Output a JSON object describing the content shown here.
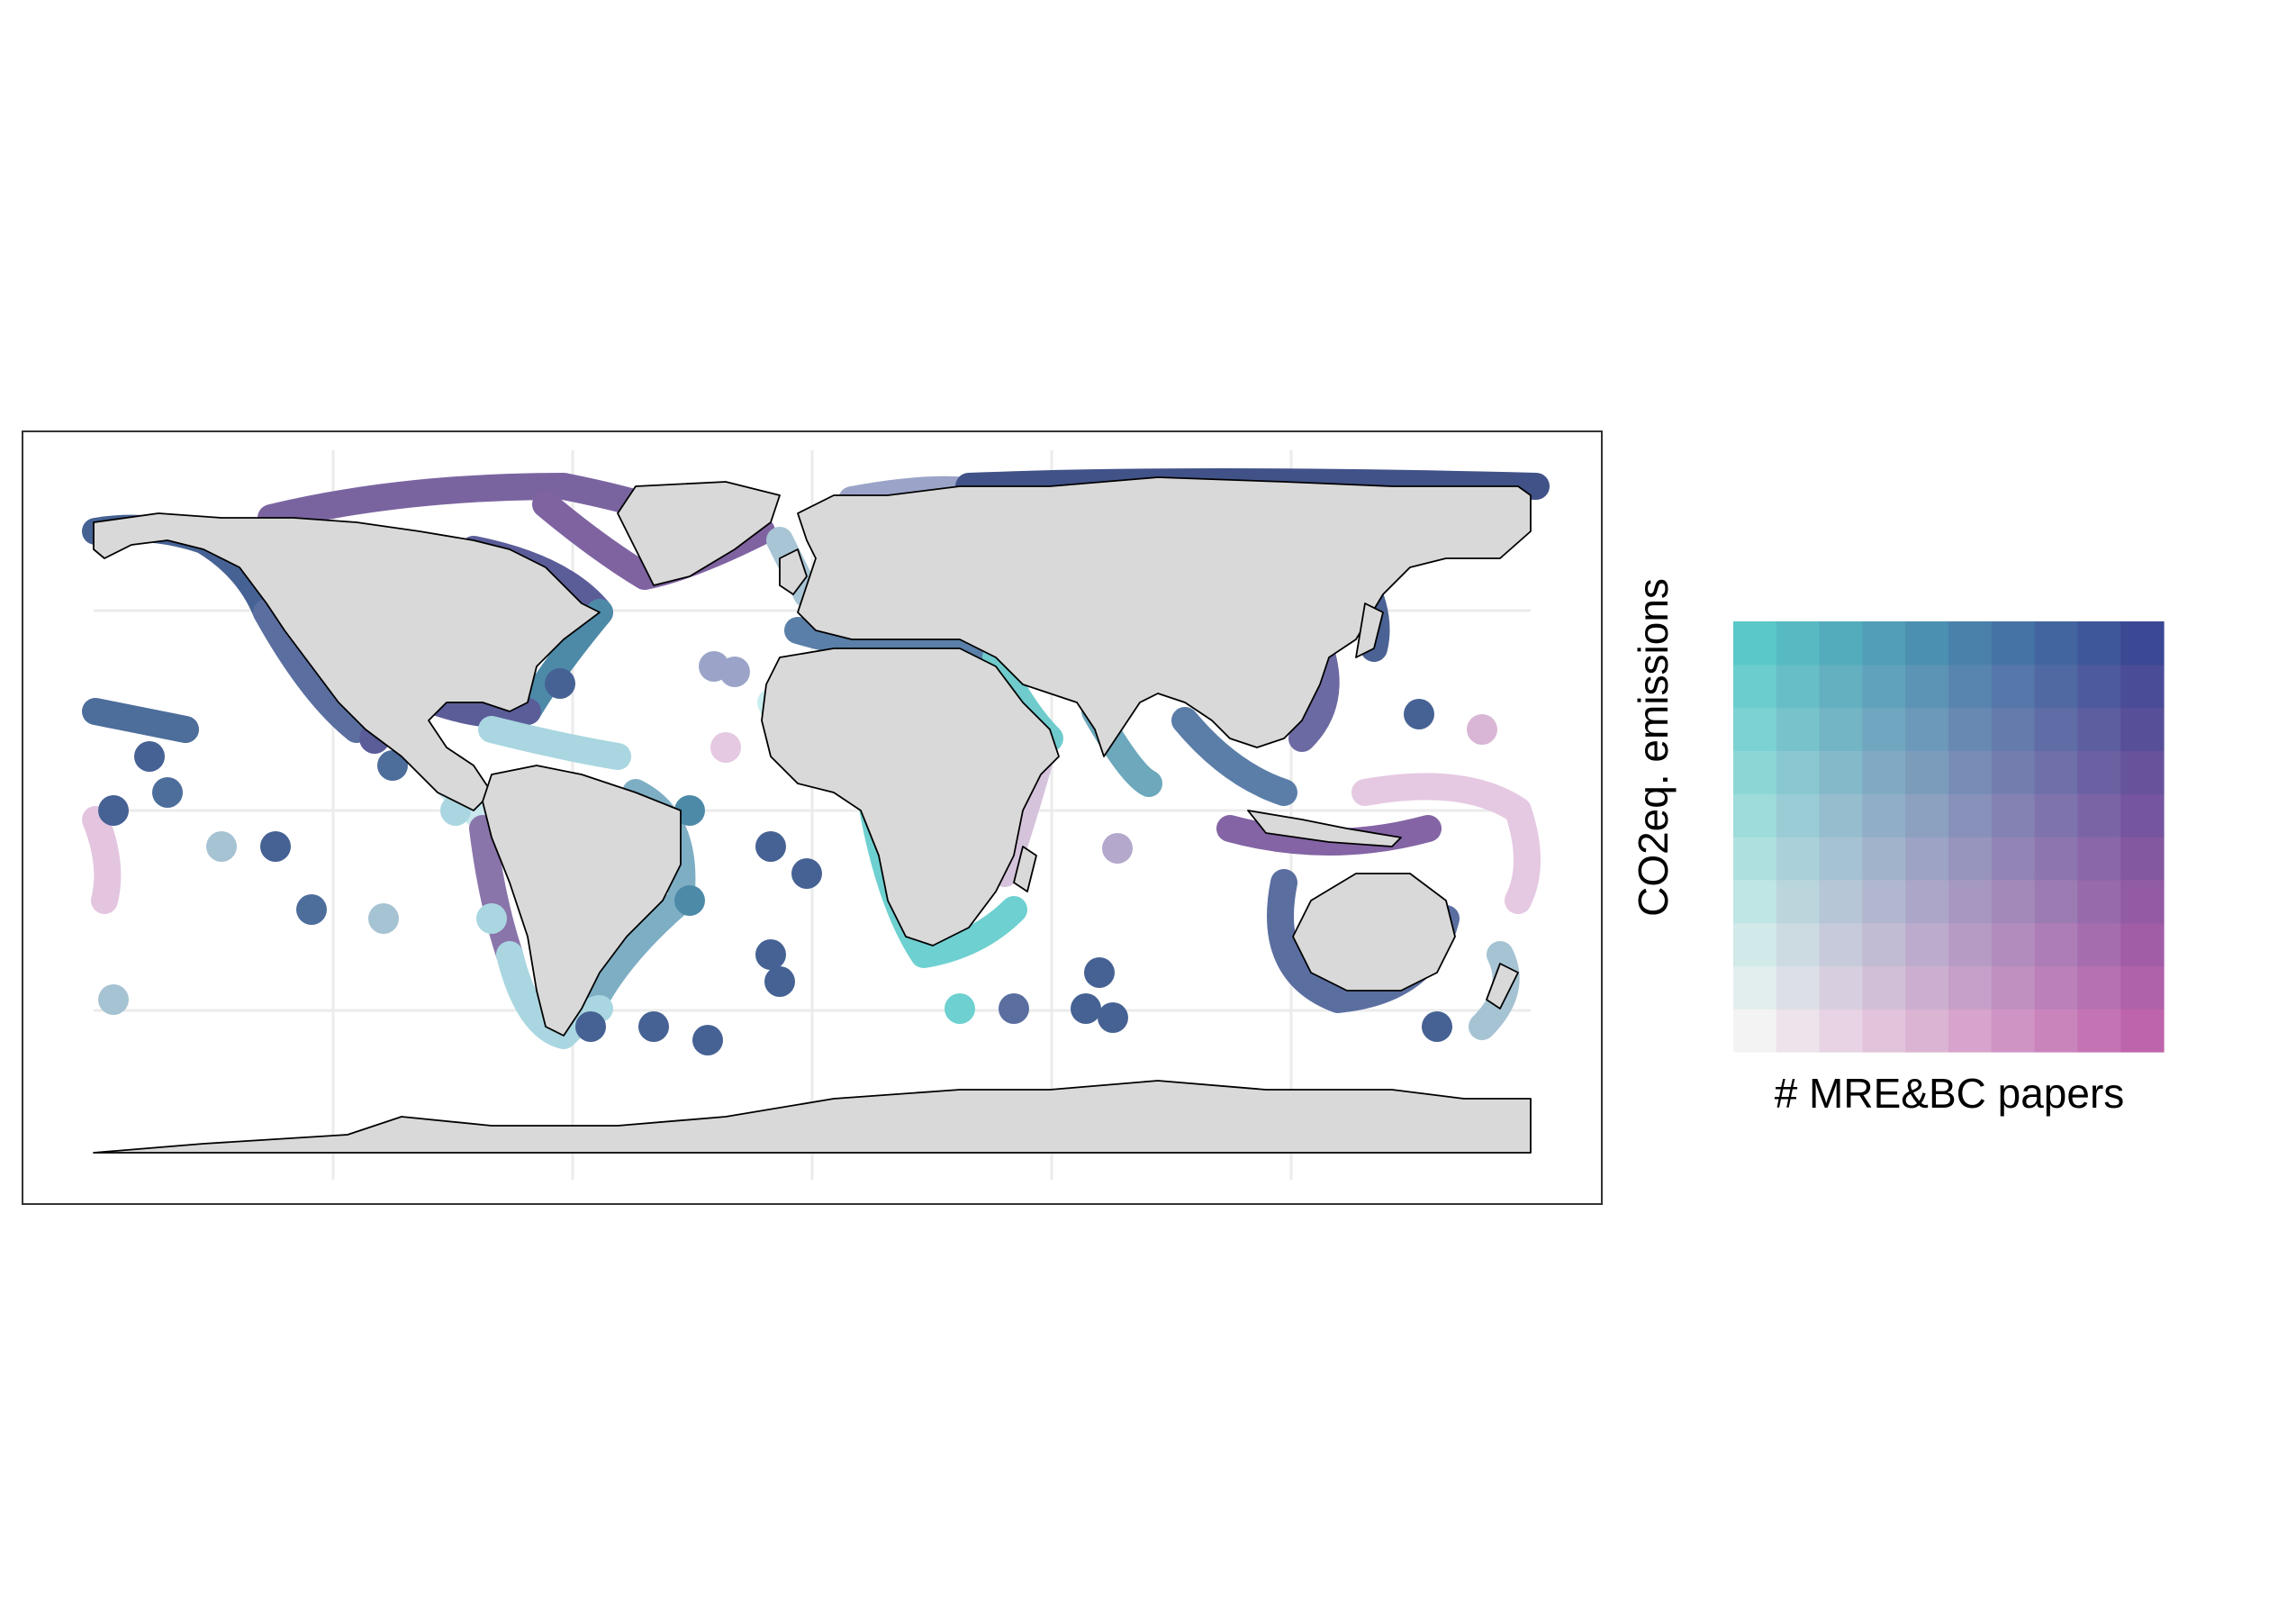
{
  "legend": {
    "x_title": "# MRE&BC papers",
    "y_title": "CO2eq. emissions",
    "corner_colors": {
      "low_low": "#f3f3f3",
      "high_x_low_y": "#be64ac",
      "low_x_high_y": "#5ac8c8",
      "high_high": "#3b4994"
    },
    "grid_size": 10
  },
  "map": {
    "land_color": "#d9d9d9",
    "border_color": "#000000",
    "graticule_color": "#ebebeb",
    "projection": "equirectangular",
    "legend_side": "right"
  }
}
